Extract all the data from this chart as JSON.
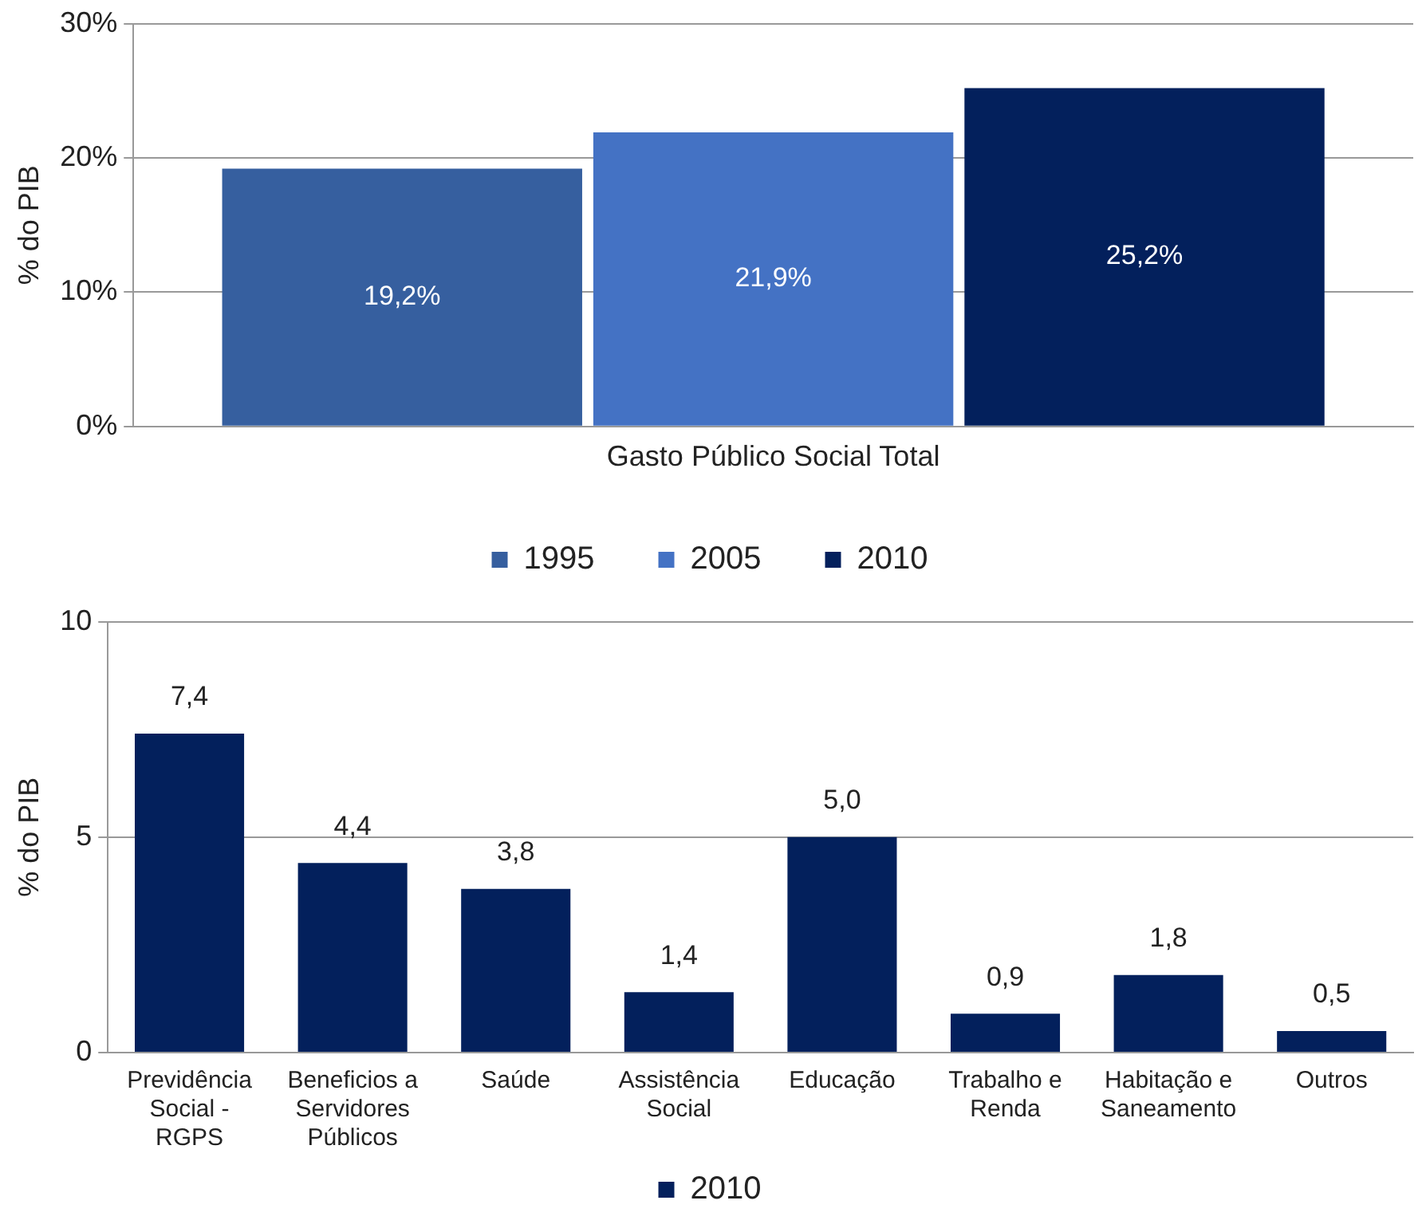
{
  "chart_data": [
    {
      "type": "bar",
      "ylabel": "% do PIB",
      "categories": [
        "Gasto Público Social Total"
      ],
      "series": [
        {
          "name": "1995",
          "color": "#365f9f",
          "values": [
            19.2
          ],
          "value_labels": [
            "19,2%"
          ]
        },
        {
          "name": "2005",
          "color": "#4472c4",
          "values": [
            21.9
          ],
          "value_labels": [
            "21,9%"
          ]
        },
        {
          "name": "2010",
          "color": "#03205c",
          "values": [
            25.2
          ],
          "value_labels": [
            "25,2%"
          ]
        }
      ],
      "ylim": [
        0,
        30
      ],
      "yticks": [
        {
          "value": 0,
          "label": "0%"
        },
        {
          "value": 10,
          "label": "10%"
        },
        {
          "value": 20,
          "label": "20%"
        },
        {
          "value": 30,
          "label": "30%"
        }
      ],
      "grid": "y",
      "legend": "bottom"
    },
    {
      "type": "bar",
      "ylabel": "% do PIB",
      "categories": [
        "Previdência Social - RGPS",
        "Beneficios a Servidores Públicos",
        "Saúde",
        "Assistência Social",
        "Educação",
        "Trabalho e Renda",
        "Habitação e Saneamento",
        "Outros"
      ],
      "series": [
        {
          "name": "2010",
          "color": "#03205c",
          "values": [
            7.4,
            4.4,
            3.8,
            1.4,
            5.0,
            0.9,
            1.8,
            0.5
          ],
          "value_labels": [
            "7,4",
            "4,4",
            "3,8",
            "1,4",
            "5,0",
            "0,9",
            "1,8",
            "0,5"
          ]
        }
      ],
      "ylim": [
        0,
        10
      ],
      "yticks": [
        0,
        5,
        10
      ],
      "grid": "y",
      "legend": "bottom"
    }
  ]
}
